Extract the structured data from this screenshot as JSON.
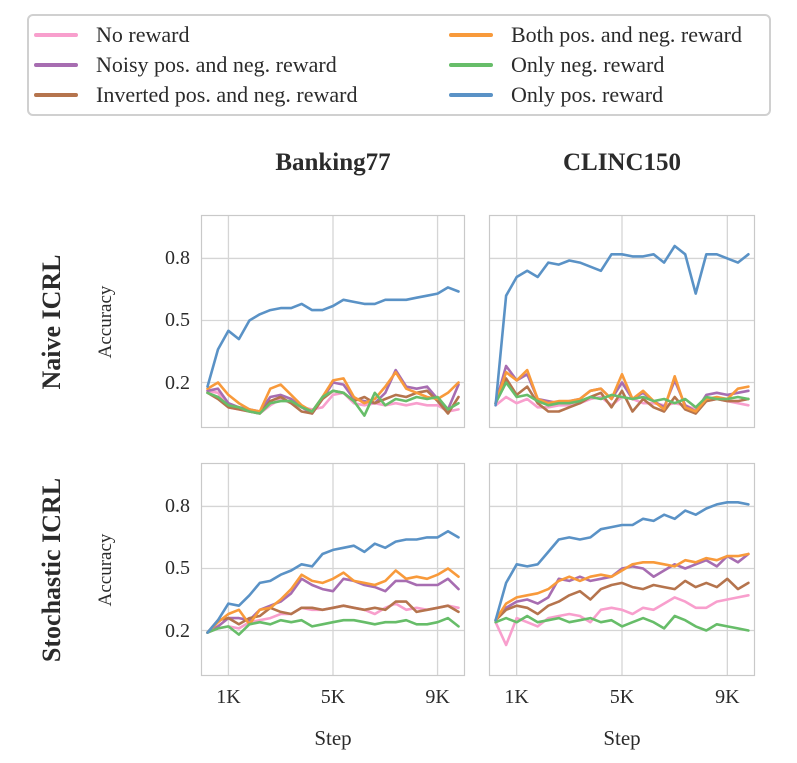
{
  "legend": {
    "items": [
      {
        "label": "No reward",
        "color": "#f89fcd"
      },
      {
        "label": "Noisy pos. and neg. reward",
        "color": "#a76db1"
      },
      {
        "label": "Inverted pos. and neg. reward",
        "color": "#b5744d"
      },
      {
        "label": "Both pos. and neg. reward",
        "color": "#f89a3b"
      },
      {
        "label": "Only neg. reward",
        "color": "#67bd69"
      },
      {
        "label": "Only pos. reward",
        "color": "#5a92c6"
      }
    ]
  },
  "columns": [
    {
      "title": "Banking77"
    },
    {
      "title": "CLINC150"
    }
  ],
  "rows": [
    {
      "title": "Naive ICRL"
    },
    {
      "title": "Stochastic ICRL"
    }
  ],
  "axes": {
    "xlabel": "Step",
    "ylabel": "Accuracy"
  },
  "chart_data": [
    {
      "type": "line",
      "title": "Naive ICRL - Banking77",
      "xlabel": "Step",
      "ylabel": "Accuracy",
      "xlim": [
        -50,
        10050
      ],
      "ylim": [
        -0.02,
        1.01
      ],
      "grid": true,
      "show_xticks": false,
      "show_yticks": true,
      "xticks": [
        {
          "value": 1000,
          "label": "1K"
        },
        {
          "value": 5000,
          "label": "5K"
        },
        {
          "value": 9000,
          "label": "9K"
        }
      ],
      "yticks": [
        {
          "value": 0.8,
          "label": "0.8"
        },
        {
          "value": 0.5,
          "label": "0.5"
        },
        {
          "value": 0.2,
          "label": "0.2"
        }
      ],
      "x": [
        200,
        600,
        1000,
        1400,
        1800,
        2200,
        2600,
        3000,
        3400,
        3800,
        4200,
        4600,
        5000,
        5400,
        5800,
        6200,
        6600,
        7000,
        7400,
        7800,
        8200,
        8600,
        9000,
        9400,
        9800
      ],
      "series": [
        {
          "name": "No reward",
          "values": [
            0.16,
            0.15,
            0.08,
            0.07,
            0.06,
            0.05,
            0.09,
            0.12,
            0.1,
            0.08,
            0.07,
            0.08,
            0.14,
            0.15,
            0.1,
            0.09,
            0.1,
            0.09,
            0.1,
            0.09,
            0.1,
            0.09,
            0.09,
            0.06,
            0.07
          ]
        },
        {
          "name": "Noisy pos. and neg. reward",
          "values": [
            0.16,
            0.17,
            0.1,
            0.08,
            0.07,
            0.06,
            0.13,
            0.14,
            0.12,
            0.08,
            0.05,
            0.12,
            0.2,
            0.19,
            0.12,
            0.11,
            0.1,
            0.15,
            0.26,
            0.18,
            0.17,
            0.18,
            0.12,
            0.07,
            0.19
          ]
        },
        {
          "name": "Inverted pos. and neg. reward",
          "values": [
            0.15,
            0.12,
            0.08,
            0.07,
            0.06,
            0.05,
            0.11,
            0.13,
            0.1,
            0.06,
            0.05,
            0.12,
            0.16,
            0.15,
            0.11,
            0.13,
            0.1,
            0.12,
            0.14,
            0.13,
            0.15,
            0.16,
            0.11,
            0.05,
            0.13
          ]
        },
        {
          "name": "Both pos. and neg. reward",
          "values": [
            0.17,
            0.2,
            0.14,
            0.1,
            0.07,
            0.06,
            0.17,
            0.19,
            0.14,
            0.09,
            0.06,
            0.13,
            0.21,
            0.22,
            0.13,
            0.1,
            0.12,
            0.18,
            0.25,
            0.17,
            0.15,
            0.13,
            0.12,
            0.15,
            0.2
          ]
        },
        {
          "name": "Only neg. reward",
          "values": [
            0.15,
            0.13,
            0.09,
            0.08,
            0.06,
            0.05,
            0.1,
            0.11,
            0.11,
            0.08,
            0.06,
            0.13,
            0.16,
            0.15,
            0.11,
            0.04,
            0.15,
            0.09,
            0.12,
            0.11,
            0.13,
            0.12,
            0.13,
            0.07,
            0.1
          ]
        },
        {
          "name": "Only pos. reward",
          "values": [
            0.18,
            0.36,
            0.45,
            0.41,
            0.5,
            0.53,
            0.55,
            0.56,
            0.56,
            0.58,
            0.55,
            0.55,
            0.57,
            0.6,
            0.59,
            0.58,
            0.58,
            0.6,
            0.6,
            0.6,
            0.61,
            0.62,
            0.63,
            0.66,
            0.64
          ]
        }
      ]
    },
    {
      "type": "line",
      "title": "Naive ICRL - CLINC150",
      "xlabel": "Step",
      "ylabel": "Accuracy",
      "xlim": [
        -50,
        10050
      ],
      "ylim": [
        -0.02,
        1.01
      ],
      "grid": true,
      "show_xticks": false,
      "show_yticks": false,
      "xticks": [
        {
          "value": 1000,
          "label": "1K"
        },
        {
          "value": 5000,
          "label": "5K"
        },
        {
          "value": 9000,
          "label": "9K"
        }
      ],
      "yticks": [
        {
          "value": 0.8,
          "label": "0.8"
        },
        {
          "value": 0.5,
          "label": "0.5"
        },
        {
          "value": 0.2,
          "label": "0.2"
        }
      ],
      "x": [
        200,
        600,
        1000,
        1400,
        1800,
        2200,
        2600,
        3000,
        3400,
        3800,
        4200,
        4600,
        5000,
        5400,
        5800,
        6200,
        6600,
        7000,
        7400,
        7800,
        8200,
        8600,
        9000,
        9400,
        9800
      ],
      "series": [
        {
          "name": "No reward",
          "values": [
            0.09,
            0.13,
            0.1,
            0.12,
            0.08,
            0.08,
            0.09,
            0.09,
            0.1,
            0.12,
            0.13,
            0.09,
            0.13,
            0.12,
            0.1,
            0.1,
            0.09,
            0.1,
            0.09,
            0.07,
            0.11,
            0.12,
            0.11,
            0.1,
            0.09
          ]
        },
        {
          "name": "Noisy pos. and neg. reward",
          "values": [
            0.1,
            0.28,
            0.21,
            0.24,
            0.12,
            0.11,
            0.1,
            0.11,
            0.12,
            0.16,
            0.17,
            0.12,
            0.2,
            0.12,
            0.15,
            0.11,
            0.08,
            0.21,
            0.09,
            0.06,
            0.14,
            0.15,
            0.14,
            0.15,
            0.16
          ]
        },
        {
          "name": "Inverted pos. and neg. reward",
          "values": [
            0.1,
            0.22,
            0.14,
            0.18,
            0.1,
            0.06,
            0.06,
            0.08,
            0.1,
            0.13,
            0.15,
            0.08,
            0.16,
            0.06,
            0.12,
            0.08,
            0.06,
            0.13,
            0.07,
            0.05,
            0.11,
            0.12,
            0.11,
            0.11,
            0.12
          ]
        },
        {
          "name": "Both pos. and neg. reward",
          "values": [
            0.1,
            0.25,
            0.21,
            0.26,
            0.12,
            0.1,
            0.11,
            0.11,
            0.12,
            0.16,
            0.17,
            0.12,
            0.24,
            0.12,
            0.16,
            0.11,
            0.07,
            0.23,
            0.08,
            0.06,
            0.12,
            0.13,
            0.12,
            0.17,
            0.18
          ]
        },
        {
          "name": "Only neg. reward",
          "values": [
            0.1,
            0.2,
            0.13,
            0.14,
            0.11,
            0.09,
            0.1,
            0.1,
            0.11,
            0.13,
            0.12,
            0.14,
            0.13,
            0.12,
            0.13,
            0.11,
            0.12,
            0.1,
            0.12,
            0.08,
            0.13,
            0.12,
            0.12,
            0.13,
            0.12
          ]
        },
        {
          "name": "Only pos. reward",
          "values": [
            0.09,
            0.62,
            0.71,
            0.74,
            0.71,
            0.78,
            0.77,
            0.79,
            0.78,
            0.76,
            0.74,
            0.82,
            0.82,
            0.81,
            0.81,
            0.82,
            0.78,
            0.86,
            0.82,
            0.63,
            0.82,
            0.82,
            0.8,
            0.78,
            0.82
          ]
        }
      ]
    },
    {
      "type": "line",
      "title": "Stochastic ICRL - Banking77",
      "xlabel": "Step",
      "ylabel": "Accuracy",
      "xlim": [
        -50,
        10050
      ],
      "ylim": [
        -0.02,
        1.01
      ],
      "grid": true,
      "show_xticks": true,
      "show_yticks": true,
      "xticks": [
        {
          "value": 1000,
          "label": "1K"
        },
        {
          "value": 5000,
          "label": "5K"
        },
        {
          "value": 9000,
          "label": "9K"
        }
      ],
      "yticks": [
        {
          "value": 0.8,
          "label": "0.8"
        },
        {
          "value": 0.5,
          "label": "0.5"
        },
        {
          "value": 0.2,
          "label": "0.2"
        }
      ],
      "x": [
        200,
        600,
        1000,
        1400,
        1800,
        2200,
        2600,
        3000,
        3400,
        3800,
        4200,
        4600,
        5000,
        5400,
        5800,
        6200,
        6600,
        7000,
        7400,
        7800,
        8200,
        8600,
        9000,
        9400,
        9800
      ],
      "series": [
        {
          "name": "No reward",
          "values": [
            0.19,
            0.21,
            0.22,
            0.21,
            0.24,
            0.25,
            0.26,
            0.28,
            0.28,
            0.31,
            0.3,
            0.3,
            0.31,
            0.32,
            0.31,
            0.3,
            0.28,
            0.31,
            0.33,
            0.3,
            0.31,
            0.3,
            0.31,
            0.32,
            0.31
          ]
        },
        {
          "name": "Noisy pos. and neg. reward",
          "values": [
            0.19,
            0.22,
            0.26,
            0.26,
            0.25,
            0.3,
            0.32,
            0.34,
            0.38,
            0.45,
            0.42,
            0.4,
            0.39,
            0.45,
            0.44,
            0.42,
            0.41,
            0.39,
            0.44,
            0.44,
            0.42,
            0.42,
            0.42,
            0.45,
            0.4
          ]
        },
        {
          "name": "Inverted pos. and neg. reward",
          "values": [
            0.19,
            0.25,
            0.26,
            0.23,
            0.26,
            0.27,
            0.31,
            0.29,
            0.28,
            0.31,
            0.31,
            0.3,
            0.31,
            0.32,
            0.31,
            0.3,
            0.31,
            0.3,
            0.34,
            0.34,
            0.29,
            0.3,
            0.31,
            0.32,
            0.29
          ]
        },
        {
          "name": "Both pos. and neg. reward",
          "values": [
            0.19,
            0.24,
            0.28,
            0.3,
            0.23,
            0.3,
            0.31,
            0.35,
            0.4,
            0.47,
            0.44,
            0.43,
            0.45,
            0.48,
            0.44,
            0.43,
            0.42,
            0.44,
            0.49,
            0.45,
            0.46,
            0.45,
            0.47,
            0.5,
            0.46
          ]
        },
        {
          "name": "Only neg. reward",
          "values": [
            0.19,
            0.21,
            0.22,
            0.18,
            0.23,
            0.24,
            0.23,
            0.25,
            0.24,
            0.25,
            0.22,
            0.23,
            0.24,
            0.25,
            0.25,
            0.24,
            0.23,
            0.24,
            0.24,
            0.25,
            0.23,
            0.23,
            0.24,
            0.26,
            0.22
          ]
        },
        {
          "name": "Only pos. reward",
          "values": [
            0.19,
            0.25,
            0.33,
            0.32,
            0.37,
            0.43,
            0.44,
            0.47,
            0.49,
            0.52,
            0.51,
            0.57,
            0.59,
            0.6,
            0.61,
            0.58,
            0.62,
            0.6,
            0.63,
            0.64,
            0.64,
            0.65,
            0.65,
            0.68,
            0.65
          ]
        }
      ]
    },
    {
      "type": "line",
      "title": "Stochastic ICRL - CLINC150",
      "xlabel": "Step",
      "ylabel": "Accuracy",
      "xlim": [
        -50,
        10050
      ],
      "ylim": [
        -0.02,
        1.01
      ],
      "grid": true,
      "show_xticks": true,
      "show_yticks": false,
      "xticks": [
        {
          "value": 1000,
          "label": "1K"
        },
        {
          "value": 5000,
          "label": "5K"
        },
        {
          "value": 9000,
          "label": "9K"
        }
      ],
      "yticks": [
        {
          "value": 0.8,
          "label": "0.8"
        },
        {
          "value": 0.5,
          "label": "0.5"
        },
        {
          "value": 0.2,
          "label": "0.2"
        }
      ],
      "x": [
        200,
        600,
        1000,
        1400,
        1800,
        2200,
        2600,
        3000,
        3400,
        3800,
        4200,
        4600,
        5000,
        5400,
        5800,
        6200,
        6600,
        7000,
        7400,
        7800,
        8200,
        8600,
        9000,
        9400,
        9800
      ],
      "series": [
        {
          "name": "No reward",
          "values": [
            0.24,
            0.13,
            0.26,
            0.24,
            0.22,
            0.26,
            0.27,
            0.28,
            0.27,
            0.24,
            0.3,
            0.31,
            0.3,
            0.28,
            0.31,
            0.3,
            0.33,
            0.36,
            0.34,
            0.31,
            0.31,
            0.34,
            0.35,
            0.36,
            0.37
          ]
        },
        {
          "name": "Noisy pos. and neg. reward",
          "values": [
            0.25,
            0.31,
            0.34,
            0.35,
            0.33,
            0.36,
            0.45,
            0.44,
            0.46,
            0.44,
            0.45,
            0.46,
            0.5,
            0.51,
            0.5,
            0.46,
            0.49,
            0.52,
            0.5,
            0.52,
            0.54,
            0.51,
            0.56,
            0.53,
            0.57
          ]
        },
        {
          "name": "Inverted pos. and neg. reward",
          "values": [
            0.25,
            0.3,
            0.32,
            0.31,
            0.28,
            0.32,
            0.34,
            0.37,
            0.39,
            0.35,
            0.4,
            0.42,
            0.43,
            0.41,
            0.4,
            0.42,
            0.41,
            0.4,
            0.44,
            0.41,
            0.43,
            0.41,
            0.45,
            0.4,
            0.43
          ]
        },
        {
          "name": "Both pos. and neg. reward",
          "values": [
            0.25,
            0.33,
            0.36,
            0.37,
            0.38,
            0.4,
            0.44,
            0.46,
            0.44,
            0.46,
            0.47,
            0.46,
            0.49,
            0.52,
            0.53,
            0.53,
            0.52,
            0.51,
            0.54,
            0.53,
            0.55,
            0.54,
            0.56,
            0.56,
            0.57
          ]
        },
        {
          "name": "Only neg. reward",
          "values": [
            0.24,
            0.26,
            0.24,
            0.27,
            0.24,
            0.25,
            0.26,
            0.24,
            0.25,
            0.26,
            0.24,
            0.25,
            0.22,
            0.24,
            0.26,
            0.24,
            0.21,
            0.27,
            0.25,
            0.22,
            0.2,
            0.23,
            0.22,
            0.21,
            0.2
          ]
        },
        {
          "name": "Only pos. reward",
          "values": [
            0.25,
            0.43,
            0.52,
            0.51,
            0.52,
            0.58,
            0.64,
            0.65,
            0.64,
            0.65,
            0.69,
            0.7,
            0.71,
            0.71,
            0.74,
            0.73,
            0.76,
            0.74,
            0.78,
            0.76,
            0.79,
            0.81,
            0.82,
            0.82,
            0.81
          ]
        }
      ]
    }
  ],
  "style": {
    "grid_color": "#d5d5d5",
    "spine_color": "#c9c9c9",
    "text_color": "#2b2b2b",
    "line_width": 2.6
  }
}
